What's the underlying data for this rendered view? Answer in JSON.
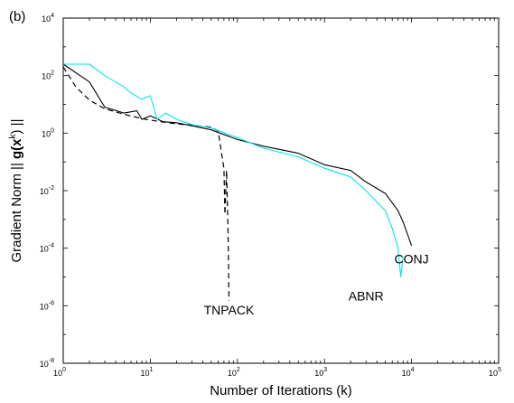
{
  "chart_data": {
    "type": "line",
    "panel_label": "(b)",
    "xlabel": "Number of Iterations (k)",
    "ylabel": {
      "prefix": "Gradient Norm || ",
      "bold": "g(x",
      "sup": "k",
      "suffix": ") ||"
    },
    "x_scale": "log",
    "y_scale": "log",
    "xlim": [
      1,
      100000
    ],
    "ylim": [
      1e-08,
      10000
    ],
    "x_ticks": [
      {
        "mantissa": "10",
        "exp": "0"
      },
      {
        "mantissa": "10",
        "exp": "1"
      },
      {
        "mantissa": "10",
        "exp": "2"
      },
      {
        "mantissa": "10",
        "exp": "3"
      },
      {
        "mantissa": "10",
        "exp": "4"
      },
      {
        "mantissa": "10",
        "exp": "5"
      }
    ],
    "y_ticks": [
      {
        "mantissa": "10",
        "exp": "-8"
      },
      {
        "mantissa": "10",
        "exp": "-6"
      },
      {
        "mantissa": "10",
        "exp": "-4"
      },
      {
        "mantissa": "10",
        "exp": "-2"
      },
      {
        "mantissa": "10",
        "exp": "0"
      },
      {
        "mantissa": "10",
        "exp": "2"
      },
      {
        "mantissa": "10",
        "exp": "4"
      }
    ],
    "grid": false,
    "series": [
      {
        "name": "TNPACK",
        "color": "#000000",
        "style": "dashed",
        "x": [
          1,
          1.4,
          2,
          3,
          5,
          8,
          12,
          20,
          30,
          50,
          60,
          70,
          72,
          75,
          78,
          80
        ],
        "y": [
          200,
          40,
          14,
          7,
          4.5,
          3.2,
          2.6,
          2.1,
          1.9,
          1.6,
          1.2,
          0.06,
          0.0015,
          0.05,
          0.0005,
          1.5e-06
        ]
      },
      {
        "name": "CONJ",
        "color": "#000000",
        "style": "solid",
        "x": [
          1,
          2,
          3,
          5,
          7,
          8,
          10,
          14,
          20,
          30,
          50,
          100,
          200,
          500,
          1000,
          2000,
          3000,
          5000,
          7000,
          8000,
          9000,
          10000
        ],
        "y": [
          250,
          60,
          8,
          5,
          6,
          3,
          4,
          2.5,
          2.3,
          1.8,
          1.3,
          0.6,
          0.35,
          0.2,
          0.08,
          0.05,
          0.02,
          0.008,
          0.002,
          0.0008,
          0.0003,
          0.00012
        ]
      },
      {
        "name": "ABNR",
        "color": "#00e5ee",
        "style": "solid",
        "x": [
          1,
          2,
          2.5,
          3,
          4,
          5,
          6,
          8,
          10,
          12,
          15,
          20,
          30,
          50,
          100,
          200,
          500,
          1000,
          2000,
          3000,
          5000,
          6000,
          7000,
          7500,
          8000
        ],
        "y": [
          250,
          250,
          150,
          100,
          60,
          40,
          25,
          15,
          20,
          3,
          5,
          3,
          2,
          1.5,
          0.7,
          0.3,
          0.15,
          0.06,
          0.03,
          0.01,
          0.002,
          0.0005,
          0.0001,
          1e-05,
          5e-05
        ]
      }
    ],
    "annotations": [
      {
        "text": "TNPACK",
        "x": 80,
        "y": 5e-07
      },
      {
        "text": "ABNR",
        "x": 3000,
        "y": 1.5e-06
      },
      {
        "text": "CONJ",
        "x": 10000,
        "y": 3e-05
      }
    ]
  }
}
